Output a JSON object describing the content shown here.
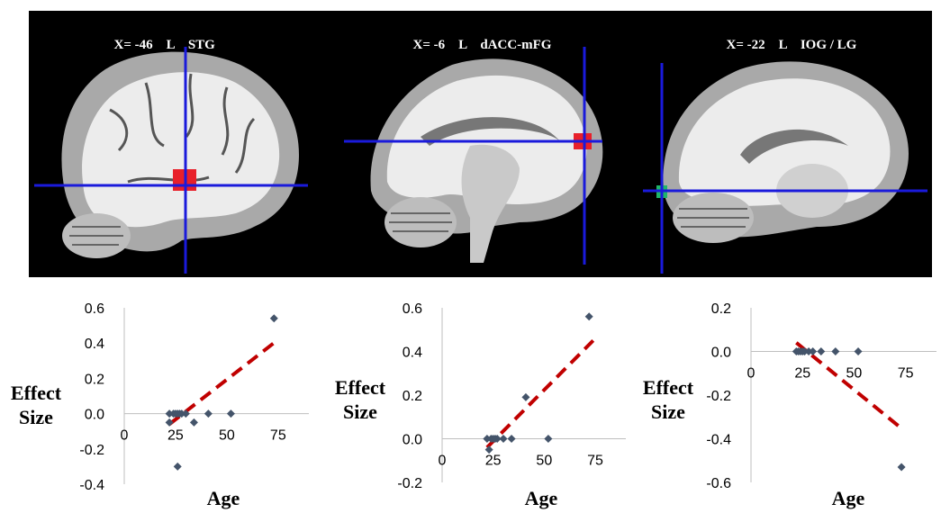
{
  "panels": [
    {
      "x_label": "X= -46",
      "side": "L",
      "region": "STG"
    },
    {
      "x_label": "X= -6",
      "side": "L",
      "region": "dACC-mFG"
    },
    {
      "x_label": "X= -22",
      "side": "L",
      "region": "IOG / LG"
    }
  ],
  "colors": {
    "crosshair": "#1a1adb",
    "activation_red": "#e8202a",
    "activation_green": "#1fb56a",
    "marker": "#44546a",
    "trendline": "#c00000"
  },
  "chart_data": [
    {
      "type": "scatter",
      "xlabel": "Age",
      "ylabel": "Effect Size",
      "xlim": [
        0,
        90
      ],
      "ylim": [
        -0.4,
        0.6
      ],
      "xticks": [
        "0",
        "25",
        "50",
        "75"
      ],
      "yticks": [
        "-0.4",
        "-0.2",
        "0.0",
        "0.2",
        "0.4",
        "0.6"
      ],
      "points": [
        [
          22,
          0.0
        ],
        [
          22,
          -0.05
        ],
        [
          24,
          0.0
        ],
        [
          25,
          0.0
        ],
        [
          26,
          0.0
        ],
        [
          26,
          -0.3
        ],
        [
          27,
          0.0
        ],
        [
          28,
          0.0
        ],
        [
          30,
          0.0
        ],
        [
          34,
          -0.05
        ],
        [
          41,
          0.0
        ],
        [
          52,
          0.0
        ],
        [
          73,
          0.54
        ]
      ],
      "trendline": {
        "x": [
          22,
          74
        ],
        "y": [
          -0.06,
          0.41
        ],
        "style": "dashed"
      }
    },
    {
      "type": "scatter",
      "xlabel": "Age",
      "ylabel": "Effect Size",
      "xlim": [
        0,
        90
      ],
      "ylim": [
        -0.2,
        0.6
      ],
      "xticks": [
        "0",
        "25",
        "50",
        "75"
      ],
      "yticks": [
        "-0.2",
        "0.0",
        "0.2",
        "0.4",
        "0.6"
      ],
      "points": [
        [
          22,
          0.0
        ],
        [
          23,
          -0.05
        ],
        [
          24,
          0.0
        ],
        [
          25,
          0.0
        ],
        [
          26,
          0.0
        ],
        [
          27,
          0.0
        ],
        [
          30,
          0.0
        ],
        [
          34,
          0.0
        ],
        [
          41,
          0.19
        ],
        [
          52,
          0.0
        ],
        [
          72,
          0.56
        ]
      ],
      "trendline": {
        "x": [
          22,
          74
        ],
        "y": [
          -0.04,
          0.45
        ],
        "style": "dashed"
      }
    },
    {
      "type": "scatter",
      "xlabel": "Age",
      "ylabel": "Effect Size",
      "xlim": [
        0,
        90
      ],
      "ylim": [
        -0.6,
        0.2
      ],
      "xticks": [
        "0",
        "25",
        "50",
        "75"
      ],
      "yticks": [
        "-0.6",
        "-0.4",
        "-0.2",
        "0.0",
        "0.2"
      ],
      "points": [
        [
          22,
          0.0
        ],
        [
          23,
          0.0
        ],
        [
          24,
          0.0
        ],
        [
          25,
          0.0
        ],
        [
          26,
          0.0
        ],
        [
          28,
          0.0
        ],
        [
          30,
          0.0
        ],
        [
          34,
          0.0
        ],
        [
          41,
          0.0
        ],
        [
          52,
          0.0
        ],
        [
          73,
          -0.53
        ]
      ],
      "trendline": {
        "x": [
          22,
          74
        ],
        "y": [
          0.04,
          -0.36
        ],
        "style": "dashed"
      }
    }
  ]
}
